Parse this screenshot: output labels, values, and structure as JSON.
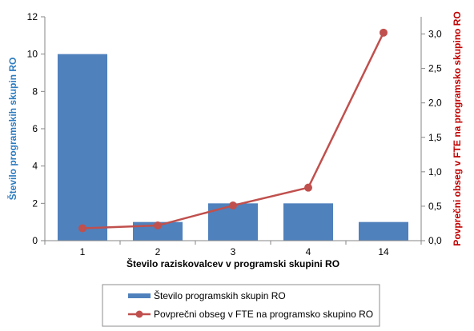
{
  "chart_data": {
    "type": "bar",
    "categories": [
      "1",
      "2",
      "3",
      "4",
      "14"
    ],
    "series": [
      {
        "name": "Število programskih skupin RO",
        "type": "bar",
        "axis": "left",
        "values": [
          10,
          1,
          2,
          2,
          1
        ],
        "color": "#4f81bd"
      },
      {
        "name": "Povprečni obseg v FTE na programsko skupino RO",
        "type": "line",
        "axis": "right",
        "values": [
          0.18,
          0.22,
          0.51,
          0.77,
          3.02
        ],
        "color": "#c0504d"
      }
    ],
    "xlabel": "Število raziskovalcev v programski skupini RO",
    "ylabel": "Število programskih skupin RO",
    "ylabel_right": "Povprečni obseg v FTE na programsko skupino RO",
    "ylim": [
      0,
      12
    ],
    "ylim_right": [
      0,
      3.25
    ],
    "yticks": [
      "0",
      "2",
      "4",
      "6",
      "8",
      "10",
      "12"
    ],
    "yticks_right": [
      "0,0",
      "0,5",
      "1,0",
      "1,5",
      "2,0",
      "2,5",
      "3,0"
    ],
    "grid": false,
    "legend_position": "bottom",
    "left_axis_color": "#2e7cbf",
    "right_axis_color": "#c00000"
  }
}
